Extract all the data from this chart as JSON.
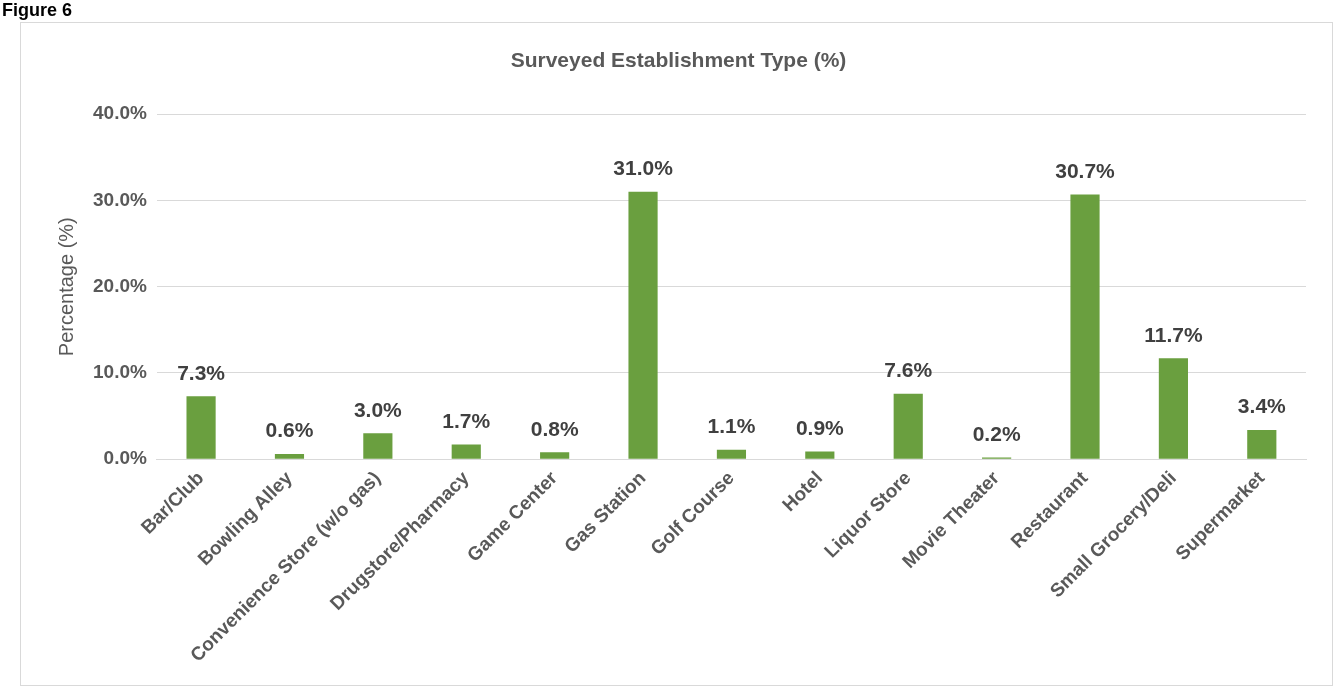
{
  "chart_data": {
    "type": "bar",
    "title": "Surveyed Establishment Type (%)",
    "ylabel": "Percentage (%)",
    "annotations": [
      "Figure 6"
    ],
    "categories": [
      "Bar/Club",
      "Bowling Alley",
      "Convenience Store (w/o gas)",
      "Drugstore/Pharmacy",
      "Game Center",
      "Gas Station",
      "Golf Course",
      "Hotel",
      "Liquor Store",
      "Movie Theater",
      "Restaurant",
      "Small Grocery/Deli",
      "Supermarket"
    ],
    "values": [
      7.3,
      0.6,
      3.0,
      1.7,
      0.8,
      31.0,
      1.1,
      0.9,
      7.6,
      0.2,
      30.7,
      11.7,
      3.4
    ],
    "value_labels": [
      "7.3%",
      "0.6%",
      "3.0%",
      "1.7%",
      "0.8%",
      "31.0%",
      "1.1%",
      "0.9%",
      "7.6%",
      "0.2%",
      "30.7%",
      "11.7%",
      "3.4%"
    ],
    "color": "#6a9f3f",
    "ylim": [
      0,
      40
    ],
    "yticks": [
      {
        "value": 0,
        "label": "0.0%"
      },
      {
        "value": 10,
        "label": "10.0%"
      },
      {
        "value": 20,
        "label": "20.0%"
      },
      {
        "value": 30,
        "label": "30.0%"
      },
      {
        "value": 40,
        "label": "40.0%"
      }
    ],
    "grid": "y",
    "legend": false
  }
}
